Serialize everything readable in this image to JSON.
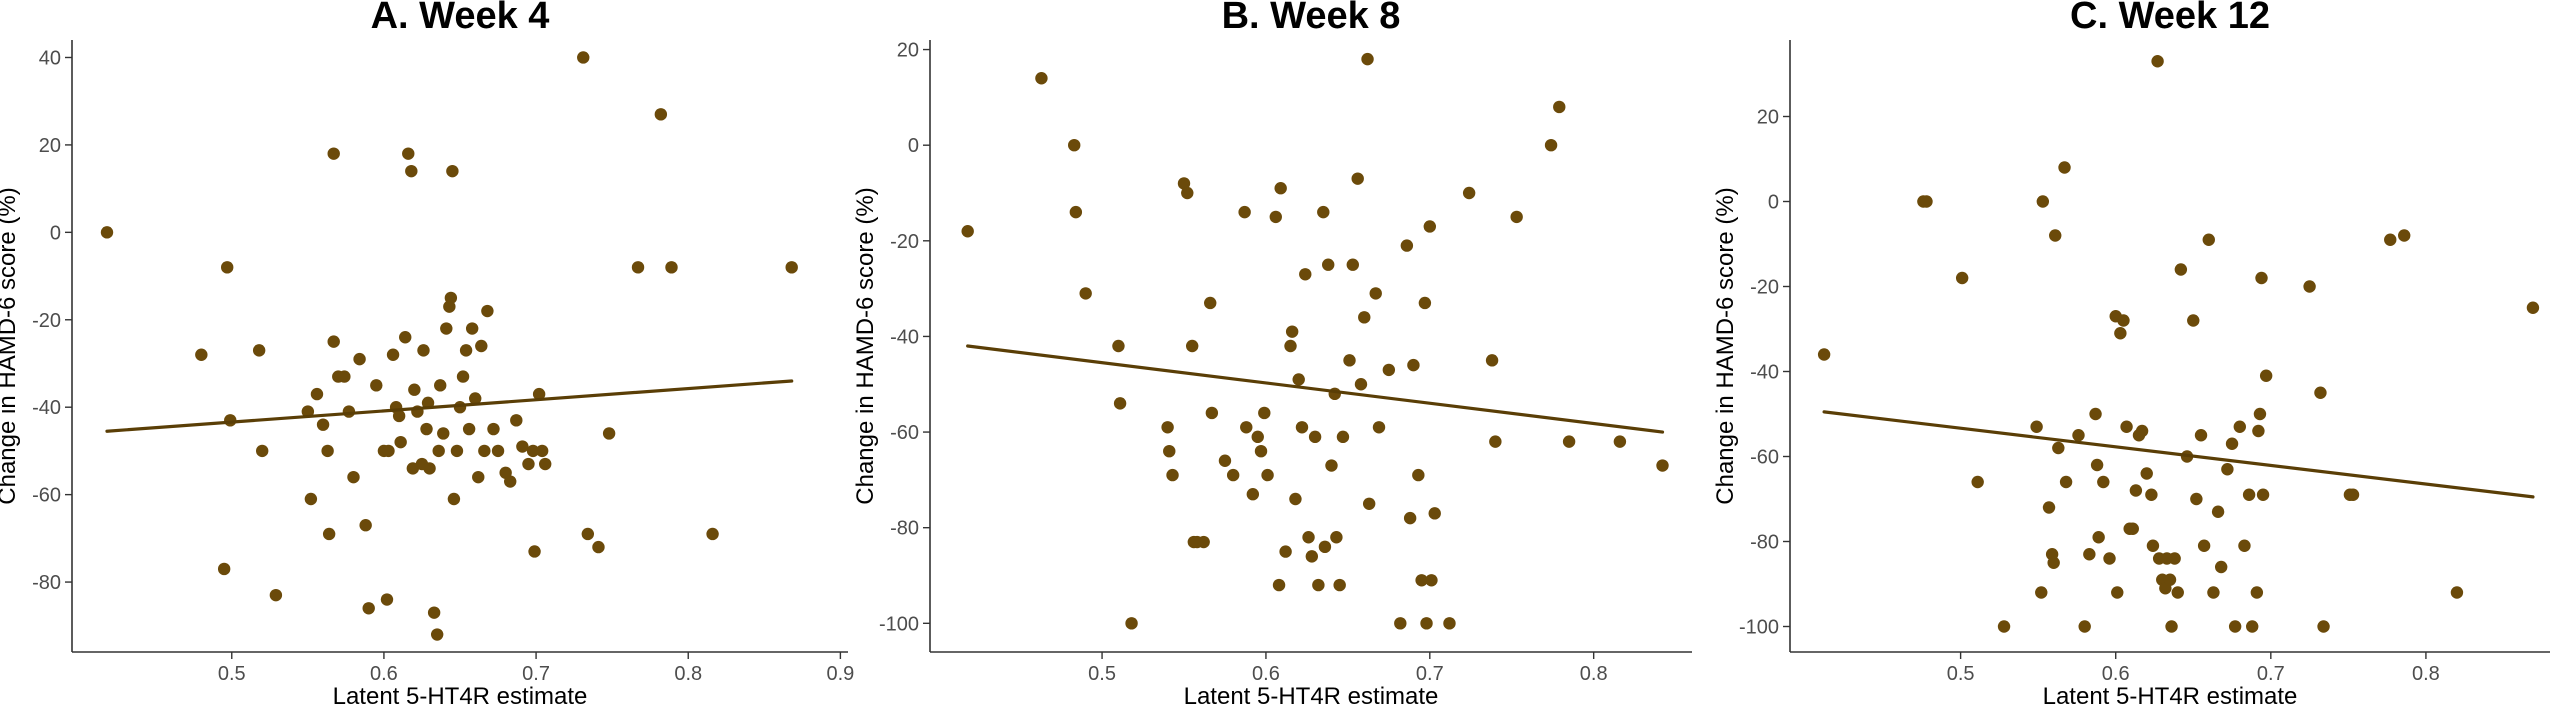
{
  "colors": {
    "point": "#6b4a0a",
    "line": "#5a3e06",
    "axis": "#333333",
    "tick_text": "#4d4d4d"
  },
  "chart_data": [
    {
      "type": "scatter",
      "title": "A. Week 4",
      "xlabel": "Latent 5-HT4R estimate",
      "ylabel": "Change in HAMD-6 score (%)",
      "xlim": [
        0.395,
        0.905
      ],
      "ylim": [
        -96,
        44
      ],
      "xticks": [
        0.5,
        0.6,
        0.7,
        0.8,
        0.9
      ],
      "xtick_labels": [
        "0.5",
        "0.6",
        "0.7",
        "0.8",
        "0.9"
      ],
      "yticks": [
        -80,
        -60,
        -40,
        -20,
        0,
        20,
        40
      ],
      "ytick_labels": [
        "-80",
        "-60",
        "-40",
        "-20",
        "0",
        "20",
        "40"
      ],
      "trend": {
        "x": [
          0.418,
          0.868
        ],
        "y": [
          -45.5,
          -34
        ]
      },
      "points": [
        [
          0.418,
          0
        ],
        [
          0.48,
          -28
        ],
        [
          0.497,
          -8
        ],
        [
          0.495,
          -77
        ],
        [
          0.499,
          -43
        ],
        [
          0.518,
          -27
        ],
        [
          0.52,
          -50
        ],
        [
          0.529,
          -83
        ],
        [
          0.55,
          -41
        ],
        [
          0.552,
          -61
        ],
        [
          0.556,
          -37
        ],
        [
          0.56,
          -44
        ],
        [
          0.563,
          -50
        ],
        [
          0.564,
          -69
        ],
        [
          0.567,
          18
        ],
        [
          0.567,
          -25
        ],
        [
          0.57,
          -33
        ],
        [
          0.574,
          -33
        ],
        [
          0.577,
          -41
        ],
        [
          0.58,
          -56
        ],
        [
          0.584,
          -29
        ],
        [
          0.588,
          -67
        ],
        [
          0.59,
          -86
        ],
        [
          0.595,
          -35
        ],
        [
          0.6,
          -50
        ],
        [
          0.602,
          -84
        ],
        [
          0.603,
          -50
        ],
        [
          0.606,
          -28
        ],
        [
          0.608,
          -40
        ],
        [
          0.61,
          -42
        ],
        [
          0.611,
          -48
        ],
        [
          0.614,
          -24
        ],
        [
          0.616,
          18
        ],
        [
          0.618,
          14
        ],
        [
          0.619,
          -54
        ],
        [
          0.62,
          -36
        ],
        [
          0.622,
          -41
        ],
        [
          0.625,
          -53
        ],
        [
          0.626,
          -27
        ],
        [
          0.628,
          -45
        ],
        [
          0.629,
          -39
        ],
        [
          0.63,
          -54
        ],
        [
          0.633,
          -87
        ],
        [
          0.635,
          -92
        ],
        [
          0.636,
          -50
        ],
        [
          0.637,
          -35
        ],
        [
          0.639,
          -46
        ],
        [
          0.641,
          -22
        ],
        [
          0.643,
          -17
        ],
        [
          0.644,
          -15
        ],
        [
          0.645,
          14
        ],
        [
          0.646,
          -61
        ],
        [
          0.648,
          -50
        ],
        [
          0.65,
          -40
        ],
        [
          0.652,
          -33
        ],
        [
          0.654,
          -27
        ],
        [
          0.656,
          -45
        ],
        [
          0.658,
          -22
        ],
        [
          0.66,
          -38
        ],
        [
          0.662,
          -56
        ],
        [
          0.664,
          -26
        ],
        [
          0.666,
          -50
        ],
        [
          0.668,
          -18
        ],
        [
          0.672,
          -45
        ],
        [
          0.675,
          -50
        ],
        [
          0.68,
          -55
        ],
        [
          0.683,
          -57
        ],
        [
          0.687,
          -43
        ],
        [
          0.691,
          -49
        ],
        [
          0.695,
          -53
        ],
        [
          0.698,
          -50
        ],
        [
          0.699,
          -73
        ],
        [
          0.702,
          -37
        ],
        [
          0.704,
          -50
        ],
        [
          0.706,
          -53
        ],
        [
          0.731,
          40
        ],
        [
          0.734,
          -69
        ],
        [
          0.741,
          -72
        ],
        [
          0.748,
          -46
        ],
        [
          0.767,
          -8
        ],
        [
          0.782,
          27
        ],
        [
          0.789,
          -8
        ],
        [
          0.816,
          -69
        ],
        [
          0.868,
          -8
        ]
      ]
    },
    {
      "type": "scatter",
      "title": "B. Week 8",
      "xlabel": "Latent 5-HT4R estimate",
      "ylabel": "Change in HAMD-6 score (%)",
      "xlim": [
        0.395,
        0.86
      ],
      "ylim": [
        -106,
        22
      ],
      "xticks": [
        0.5,
        0.6,
        0.7,
        0.8
      ],
      "xtick_labels": [
        "0.5",
        "0.6",
        "0.7",
        "0.8"
      ],
      "yticks": [
        -100,
        -80,
        -60,
        -40,
        -20,
        0,
        20
      ],
      "ytick_labels": [
        "-100",
        "-80",
        "-60",
        "-40",
        "-20",
        "0",
        "20"
      ],
      "trend": {
        "x": [
          0.418,
          0.842
        ],
        "y": [
          -42,
          -60
        ]
      },
      "points": [
        [
          0.418,
          -18
        ],
        [
          0.463,
          14
        ],
        [
          0.483,
          0
        ],
        [
          0.484,
          -14
        ],
        [
          0.49,
          -31
        ],
        [
          0.51,
          -42
        ],
        [
          0.511,
          -54
        ],
        [
          0.518,
          -100
        ],
        [
          0.54,
          -59
        ],
        [
          0.541,
          -64
        ],
        [
          0.543,
          -69
        ],
        [
          0.55,
          -8
        ],
        [
          0.552,
          -10
        ],
        [
          0.555,
          -42
        ],
        [
          0.556,
          -83
        ],
        [
          0.558,
          -83
        ],
        [
          0.562,
          -83
        ],
        [
          0.566,
          -33
        ],
        [
          0.567,
          -56
        ],
        [
          0.575,
          -66
        ],
        [
          0.58,
          -69
        ],
        [
          0.587,
          -14
        ],
        [
          0.588,
          -59
        ],
        [
          0.592,
          -73
        ],
        [
          0.595,
          -61
        ],
        [
          0.597,
          -64
        ],
        [
          0.599,
          -56
        ],
        [
          0.601,
          -69
        ],
        [
          0.606,
          -15
        ],
        [
          0.608,
          -92
        ],
        [
          0.609,
          -9
        ],
        [
          0.612,
          -85
        ],
        [
          0.615,
          -42
        ],
        [
          0.616,
          -39
        ],
        [
          0.618,
          -74
        ],
        [
          0.62,
          -49
        ],
        [
          0.622,
          -59
        ],
        [
          0.624,
          -27
        ],
        [
          0.626,
          -82
        ],
        [
          0.628,
          -86
        ],
        [
          0.63,
          -61
        ],
        [
          0.632,
          -92
        ],
        [
          0.635,
          -14
        ],
        [
          0.636,
          -84
        ],
        [
          0.638,
          -25
        ],
        [
          0.64,
          -67
        ],
        [
          0.642,
          -52
        ],
        [
          0.643,
          -82
        ],
        [
          0.645,
          -92
        ],
        [
          0.647,
          -61
        ],
        [
          0.651,
          -45
        ],
        [
          0.653,
          -25
        ],
        [
          0.656,
          -7
        ],
        [
          0.658,
          -50
        ],
        [
          0.66,
          -36
        ],
        [
          0.662,
          18
        ],
        [
          0.663,
          -75
        ],
        [
          0.667,
          -31
        ],
        [
          0.669,
          -59
        ],
        [
          0.675,
          -47
        ],
        [
          0.682,
          -100
        ],
        [
          0.686,
          -21
        ],
        [
          0.688,
          -78
        ],
        [
          0.69,
          -46
        ],
        [
          0.693,
          -69
        ],
        [
          0.695,
          -91
        ],
        [
          0.697,
          -33
        ],
        [
          0.698,
          -100
        ],
        [
          0.7,
          -17
        ],
        [
          0.701,
          -91
        ],
        [
          0.703,
          -77
        ],
        [
          0.712,
          -100
        ],
        [
          0.724,
          -10
        ],
        [
          0.738,
          -45
        ],
        [
          0.74,
          -62
        ],
        [
          0.753,
          -15
        ],
        [
          0.774,
          0
        ],
        [
          0.779,
          8
        ],
        [
          0.785,
          -62
        ],
        [
          0.816,
          -62
        ],
        [
          0.842,
          -67
        ]
      ]
    },
    {
      "type": "scatter",
      "title": "C. Week 12",
      "xlabel": "Latent 5-HT4R estimate",
      "ylabel": "Change in HAMD-6 score (%)",
      "xlim": [
        0.39,
        0.88
      ],
      "ylim": [
        -106,
        38
      ],
      "xticks": [
        0.5,
        0.6,
        0.7,
        0.8
      ],
      "xtick_labels": [
        "0.5",
        "0.6",
        "0.7",
        "0.8"
      ],
      "yticks": [
        -100,
        -80,
        -60,
        -40,
        -20,
        0,
        20
      ],
      "ytick_labels": [
        "-100",
        "-80",
        "-60",
        "-40",
        "-20",
        "0",
        "20"
      ],
      "trend": {
        "x": [
          0.412,
          0.869
        ],
        "y": [
          -49.5,
          -69.5
        ]
      },
      "points": [
        [
          0.412,
          -36
        ],
        [
          0.476,
          0
        ],
        [
          0.478,
          0
        ],
        [
          0.501,
          -18
        ],
        [
          0.511,
          -66
        ],
        [
          0.528,
          -100
        ],
        [
          0.549,
          -53
        ],
        [
          0.552,
          -92
        ],
        [
          0.553,
          0
        ],
        [
          0.557,
          -72
        ],
        [
          0.559,
          -83
        ],
        [
          0.56,
          -85
        ],
        [
          0.561,
          -8
        ],
        [
          0.563,
          -58
        ],
        [
          0.567,
          8
        ],
        [
          0.568,
          -66
        ],
        [
          0.576,
          -55
        ],
        [
          0.58,
          -100
        ],
        [
          0.583,
          -83
        ],
        [
          0.587,
          -50
        ],
        [
          0.588,
          -62
        ],
        [
          0.589,
          -79
        ],
        [
          0.592,
          -66
        ],
        [
          0.596,
          -84
        ],
        [
          0.6,
          -27
        ],
        [
          0.601,
          -92
        ],
        [
          0.603,
          -31
        ],
        [
          0.605,
          -28
        ],
        [
          0.607,
          -53
        ],
        [
          0.609,
          -77
        ],
        [
          0.611,
          -77
        ],
        [
          0.613,
          -68
        ],
        [
          0.615,
          -55
        ],
        [
          0.617,
          -54
        ],
        [
          0.62,
          -64
        ],
        [
          0.623,
          -69
        ],
        [
          0.624,
          -81
        ],
        [
          0.627,
          33
        ],
        [
          0.628,
          -84
        ],
        [
          0.63,
          -89
        ],
        [
          0.632,
          -91
        ],
        [
          0.633,
          -84
        ],
        [
          0.635,
          -89
        ],
        [
          0.636,
          -100
        ],
        [
          0.638,
          -84
        ],
        [
          0.64,
          -92
        ],
        [
          0.642,
          -16
        ],
        [
          0.646,
          -60
        ],
        [
          0.65,
          -28
        ],
        [
          0.652,
          -70
        ],
        [
          0.655,
          -55
        ],
        [
          0.657,
          -81
        ],
        [
          0.66,
          -9
        ],
        [
          0.663,
          -92
        ],
        [
          0.666,
          -73
        ],
        [
          0.668,
          -86
        ],
        [
          0.672,
          -63
        ],
        [
          0.675,
          -57
        ],
        [
          0.677,
          -100
        ],
        [
          0.68,
          -53
        ],
        [
          0.683,
          -81
        ],
        [
          0.686,
          -69
        ],
        [
          0.688,
          -100
        ],
        [
          0.691,
          -92
        ],
        [
          0.692,
          -54
        ],
        [
          0.693,
          -50
        ],
        [
          0.694,
          -18
        ],
        [
          0.695,
          -69
        ],
        [
          0.697,
          -41
        ],
        [
          0.725,
          -20
        ],
        [
          0.732,
          -45
        ],
        [
          0.734,
          -100
        ],
        [
          0.751,
          -69
        ],
        [
          0.753,
          -69
        ],
        [
          0.777,
          -9
        ],
        [
          0.786,
          -8
        ],
        [
          0.82,
          -92
        ],
        [
          0.869,
          -25
        ]
      ]
    }
  ]
}
